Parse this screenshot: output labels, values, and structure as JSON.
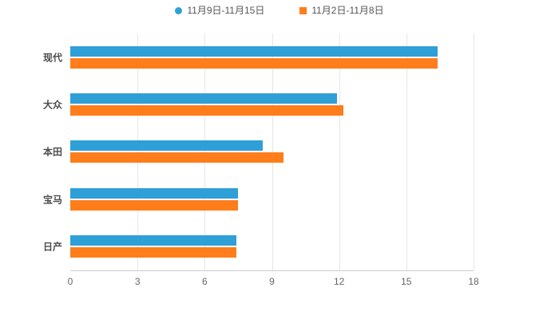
{
  "chart_data": {
    "type": "bar",
    "orientation": "horizontal",
    "title": "",
    "xlabel": "",
    "ylabel": "",
    "categories": [
      "现代",
      "大众",
      "本田",
      "宝马",
      "日产"
    ],
    "series": [
      {
        "name": "11月9日-11月15日",
        "marker": "circle",
        "color": "#2f9fd8",
        "values": [
          16.4,
          11.9,
          8.6,
          7.5,
          7.4
        ]
      },
      {
        "name": "11月2日-11月8日",
        "marker": "square",
        "color": "#ff7d1a",
        "values": [
          16.4,
          12.2,
          9.5,
          7.5,
          7.4
        ]
      }
    ],
    "xlim": [
      0,
      18
    ],
    "xticks": [
      0,
      3,
      6,
      9,
      12,
      15,
      18
    ],
    "grid": true,
    "legend_position": "top",
    "axis_color": "#cccccc",
    "tick_label_color": "#666666",
    "category_label_color": "#4d4d4d",
    "background_color": "#ffffff"
  }
}
